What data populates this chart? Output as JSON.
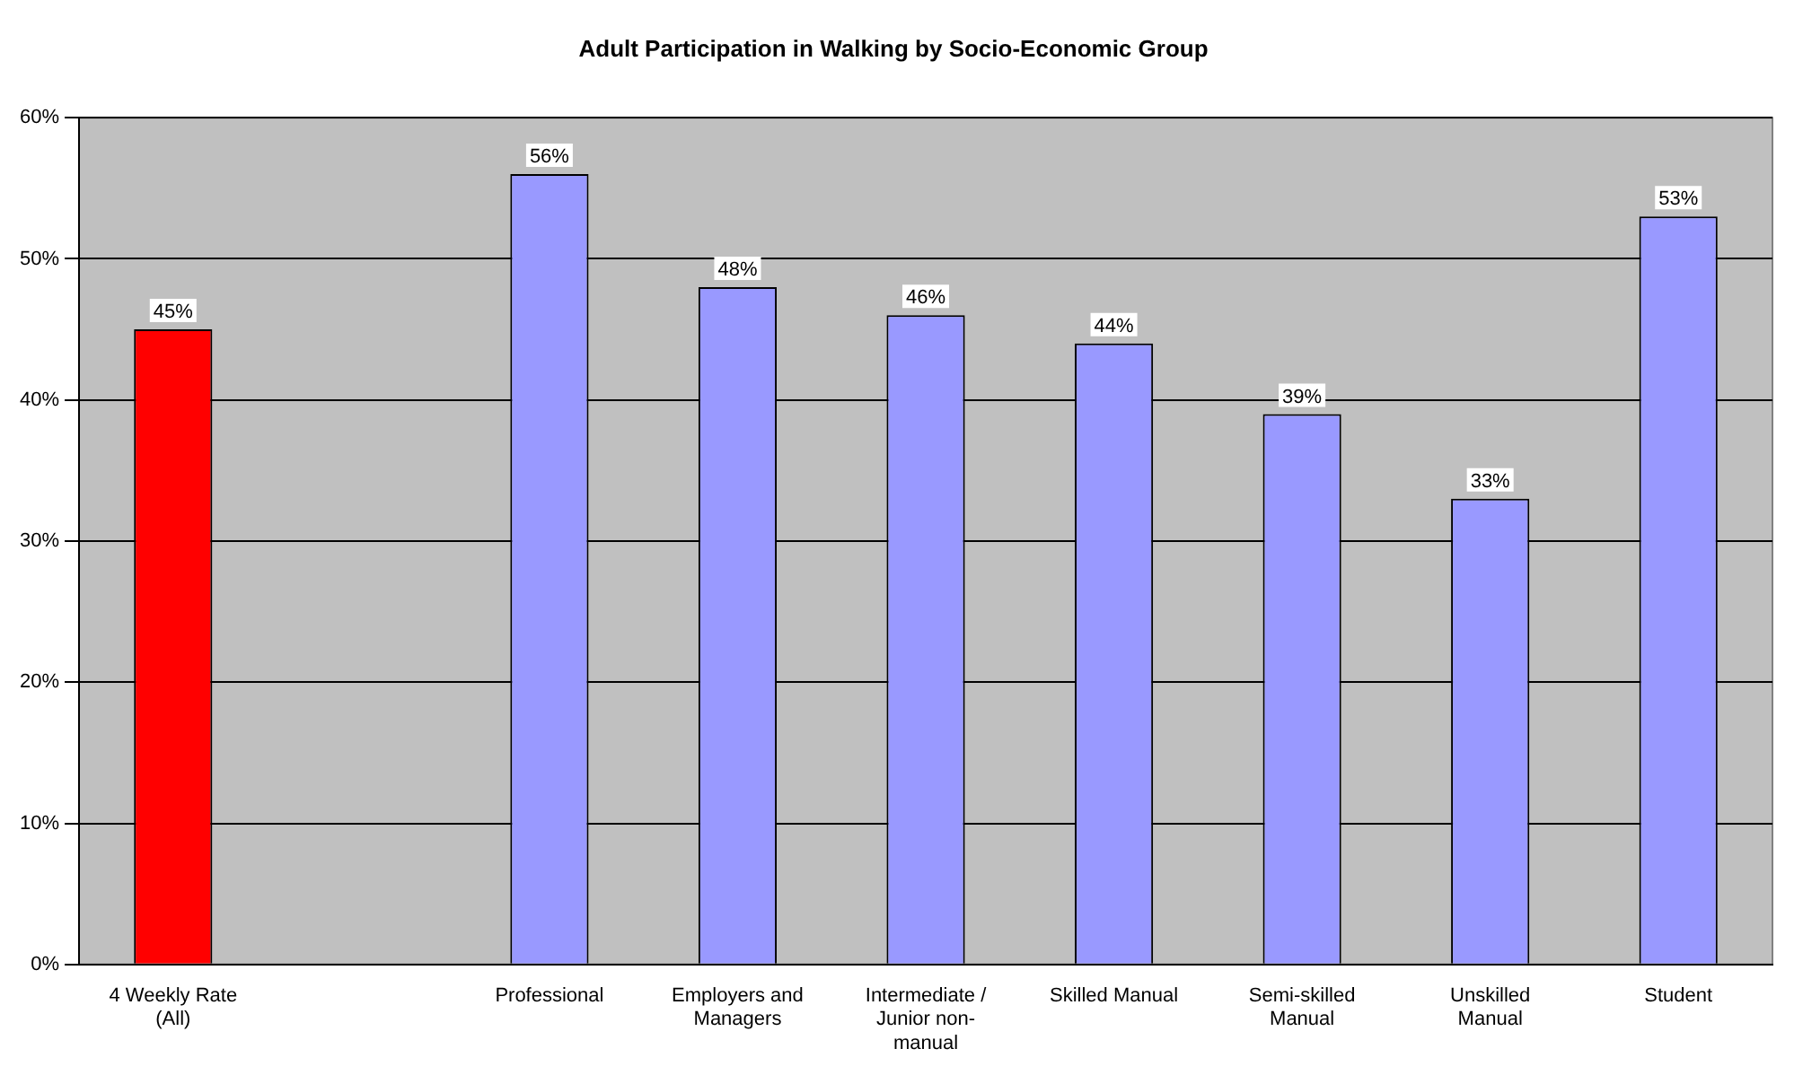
{
  "chart_data": {
    "type": "bar",
    "title": "Adult Participation in Walking by Socio-Economic Group",
    "categories": [
      "4 Weekly Rate (All)",
      null,
      "Professional",
      "Employers and Managers",
      "Intermediate / Junior non-manual",
      "Skilled Manual",
      "Semi-skilled Manual",
      "Unskilled Manual",
      "Student"
    ],
    "values": [
      45,
      null,
      56,
      48,
      46,
      44,
      39,
      33,
      53
    ],
    "colors": [
      "#ff0000",
      "#9999ff",
      "#9999ff",
      "#9999ff",
      "#9999ff",
      "#9999ff",
      "#9999ff",
      "#9999ff",
      "#9999ff"
    ],
    "value_labels": [
      "45%",
      null,
      "56%",
      "48%",
      "46%",
      "44%",
      "39%",
      "33%",
      "53%"
    ],
    "ylim": [
      0,
      60
    ],
    "yticks": [
      {
        "value": 0,
        "label": "0%"
      },
      {
        "value": 10,
        "label": "10%"
      },
      {
        "value": 20,
        "label": "20%"
      },
      {
        "value": 30,
        "label": "30%"
      },
      {
        "value": 40,
        "label": "40%"
      },
      {
        "value": 50,
        "label": "50%"
      },
      {
        "value": 60,
        "label": "60%"
      }
    ],
    "grid": "y",
    "legend": false
  }
}
